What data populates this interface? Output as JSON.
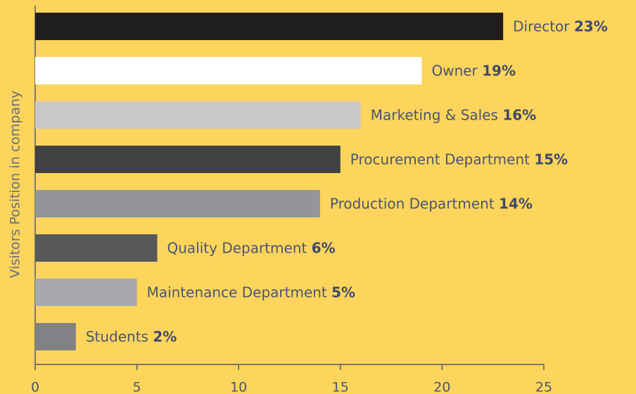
{
  "chart_data": {
    "type": "bar",
    "orientation": "horizontal",
    "y_label": "Visitors Position in company",
    "categories": [
      "Director",
      "Owner",
      "Marketing & Sales",
      "Procurement Department",
      "Production Department",
      "Quality Department",
      "Maintenance Department",
      "Students"
    ],
    "values": [
      23,
      19,
      16,
      15,
      14,
      6,
      5,
      2
    ],
    "value_labels": [
      "23%",
      "19%",
      "16%",
      "15%",
      "14%",
      "6%",
      "5%",
      "2%"
    ],
    "colors": [
      "#1f1d1e",
      "#ffffff",
      "#c8c8c8",
      "#414042",
      "#939598",
      "#58595b",
      "#a7a9ac",
      "#808285"
    ],
    "xlim": [
      0,
      25
    ],
    "xticks": [
      0,
      5,
      10,
      15,
      20,
      25
    ]
  }
}
